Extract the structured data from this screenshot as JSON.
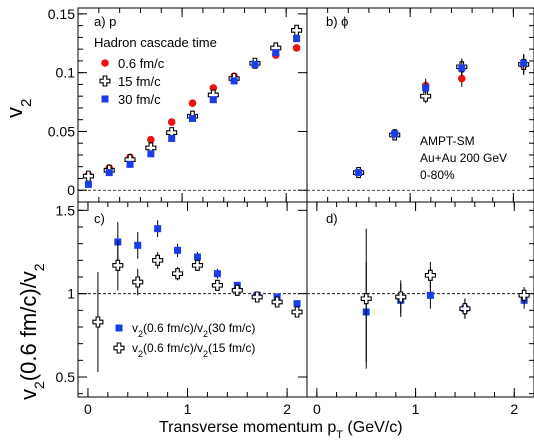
{
  "chart_data": [
    {
      "type": "scatter",
      "panel_label": "a) p",
      "ylabel": "v2",
      "xlim": [
        0,
        2.2
      ],
      "ylim": [
        -0.01,
        0.155
      ],
      "y_ticks": [
        0,
        0.05,
        0.1,
        0.15
      ],
      "y_tick_labels": [
        "0",
        "0.05",
        "0.1",
        "0.15"
      ],
      "legend_title": "Hadron cascade time",
      "legend_position": "top-left",
      "series": [
        {
          "name": "0.6 fm/c",
          "marker": "circle",
          "color": "#ee1111",
          "x": [
            0.1,
            0.3,
            0.5,
            0.7,
            0.9,
            1.1,
            1.3,
            1.5,
            1.7,
            1.9,
            2.1
          ],
          "y": [
            0.013,
            0.019,
            0.028,
            0.043,
            0.058,
            0.074,
            0.087,
            0.097,
            0.107,
            0.115,
            0.121
          ]
        },
        {
          "name": "15 fm/c",
          "marker": "open-cross",
          "color": "#000000",
          "x": [
            0.1,
            0.3,
            0.5,
            0.7,
            0.9,
            1.1,
            1.3,
            1.5,
            1.7,
            1.9,
            2.1
          ],
          "y": [
            0.012,
            0.017,
            0.026,
            0.036,
            0.049,
            0.063,
            0.081,
            0.095,
            0.108,
            0.121,
            0.136
          ]
        },
        {
          "name": "30 fm/c",
          "marker": "square",
          "color": "#1c3ce6",
          "x": [
            0.1,
            0.3,
            0.5,
            0.7,
            0.9,
            1.1,
            1.3,
            1.5,
            1.7,
            1.9,
            2.1
          ],
          "y": [
            0.005,
            0.015,
            0.022,
            0.031,
            0.044,
            0.061,
            0.077,
            0.093,
            0.107,
            0.117,
            0.129
          ]
        }
      ]
    },
    {
      "type": "scatter",
      "panel_label": "b) ϕ",
      "xlim": [
        0,
        2.2
      ],
      "ylim": [
        -0.01,
        0.155
      ],
      "annotations": [
        "AMPT-SM",
        "Au+Au 200 GeV",
        "0-80%"
      ],
      "series": [
        {
          "name": "0.6 fm/c",
          "marker": "circle",
          "color": "#ee1111",
          "x": [
            0.5,
            0.85,
            1.15,
            1.5,
            2.1
          ],
          "y": [
            0.015,
            0.048,
            0.089,
            0.095,
            0.106
          ],
          "err": [
            0.003,
            0.004,
            0.006,
            0.007,
            0.008
          ]
        },
        {
          "name": "15 fm/c",
          "marker": "open-cross",
          "color": "#000000",
          "x": [
            0.5,
            0.85,
            1.15,
            1.5,
            2.1
          ],
          "y": [
            0.015,
            0.047,
            0.08,
            0.105,
            0.107
          ],
          "err": [
            0.003,
            0.004,
            0.006,
            0.007,
            0.008
          ]
        },
        {
          "name": "30 fm/c",
          "marker": "square",
          "color": "#1c3ce6",
          "x": [
            0.5,
            0.85,
            1.15,
            1.5,
            2.1
          ],
          "y": [
            0.015,
            0.048,
            0.087,
            0.104,
            0.108
          ],
          "err": [
            0.003,
            0.004,
            0.006,
            0.007,
            0.008
          ]
        }
      ]
    },
    {
      "type": "scatter",
      "panel_label": "c)",
      "ylabel": "v2(0.6 fm/c)/v2",
      "xlabel": "Transverse momentum pT (GeV/c)",
      "xlim": [
        -0.1,
        2.2
      ],
      "ylim": [
        0.38,
        1.55
      ],
      "reference_line": 1,
      "x_ticks": [
        0,
        1,
        2
      ],
      "x_tick_labels": [
        "0",
        "1",
        "2"
      ],
      "y_ticks": [
        0.5,
        1,
        1.5
      ],
      "y_tick_labels": [
        "0.5",
        "1",
        "1.5"
      ],
      "legend_position": "bottom",
      "series": [
        {
          "name": "v2(0.6 fm/c)/v2(30 fm/c)",
          "marker": "square",
          "color": "#1c3ce6",
          "x": [
            0.3,
            0.5,
            0.7,
            0.9,
            1.1,
            1.3,
            1.5,
            1.7,
            1.9,
            2.1
          ],
          "y": [
            1.31,
            1.29,
            1.39,
            1.26,
            1.22,
            1.12,
            1.05,
            0.99,
            0.98,
            0.94
          ],
          "err": [
            0.12,
            0.08,
            0.05,
            0.04,
            0.03,
            0.03,
            0.02,
            0.02,
            0.02,
            0.02
          ]
        },
        {
          "name": "v2(0.6 fm/c)/v2(15 fm/c)",
          "marker": "open-cross",
          "color": "#000000",
          "x": [
            0.1,
            0.3,
            0.5,
            0.7,
            0.9,
            1.1,
            1.3,
            1.5,
            1.7,
            1.9,
            2.1
          ],
          "y": [
            0.83,
            1.17,
            1.07,
            1.2,
            1.12,
            1.17,
            1.05,
            1.02,
            0.98,
            0.95,
            0.89
          ],
          "err": [
            0.3,
            0.15,
            0.08,
            0.05,
            0.04,
            0.03,
            0.03,
            0.02,
            0.02,
            0.02,
            0.02
          ]
        }
      ]
    },
    {
      "type": "scatter",
      "panel_label": "d)",
      "xlim": [
        -0.1,
        2.2
      ],
      "ylim": [
        0.38,
        1.55
      ],
      "reference_line": 1,
      "x_ticks": [
        0,
        1,
        2
      ],
      "x_tick_labels": [
        "0",
        "1",
        "2"
      ],
      "series": [
        {
          "name": "v2(0.6 fm/c)/v2(30 fm/c)",
          "marker": "square",
          "color": "#1c3ce6",
          "x": [
            0.5,
            0.85,
            1.15,
            1.5,
            2.1
          ],
          "y": [
            0.89,
            0.96,
            0.99,
            0.91,
            0.96
          ],
          "err": [
            0.3,
            0.1,
            0.08,
            0.06,
            0.05
          ]
        },
        {
          "name": "v2(0.6 fm/c)/v2(15 fm/c)",
          "marker": "open-cross",
          "color": "#000000",
          "x": [
            0.5,
            0.85,
            1.15,
            1.5,
            2.1
          ],
          "y": [
            0.97,
            0.98,
            1.11,
            0.91,
            0.99
          ],
          "err": [
            0.42,
            0.1,
            0.08,
            0.06,
            0.05
          ]
        }
      ]
    }
  ]
}
